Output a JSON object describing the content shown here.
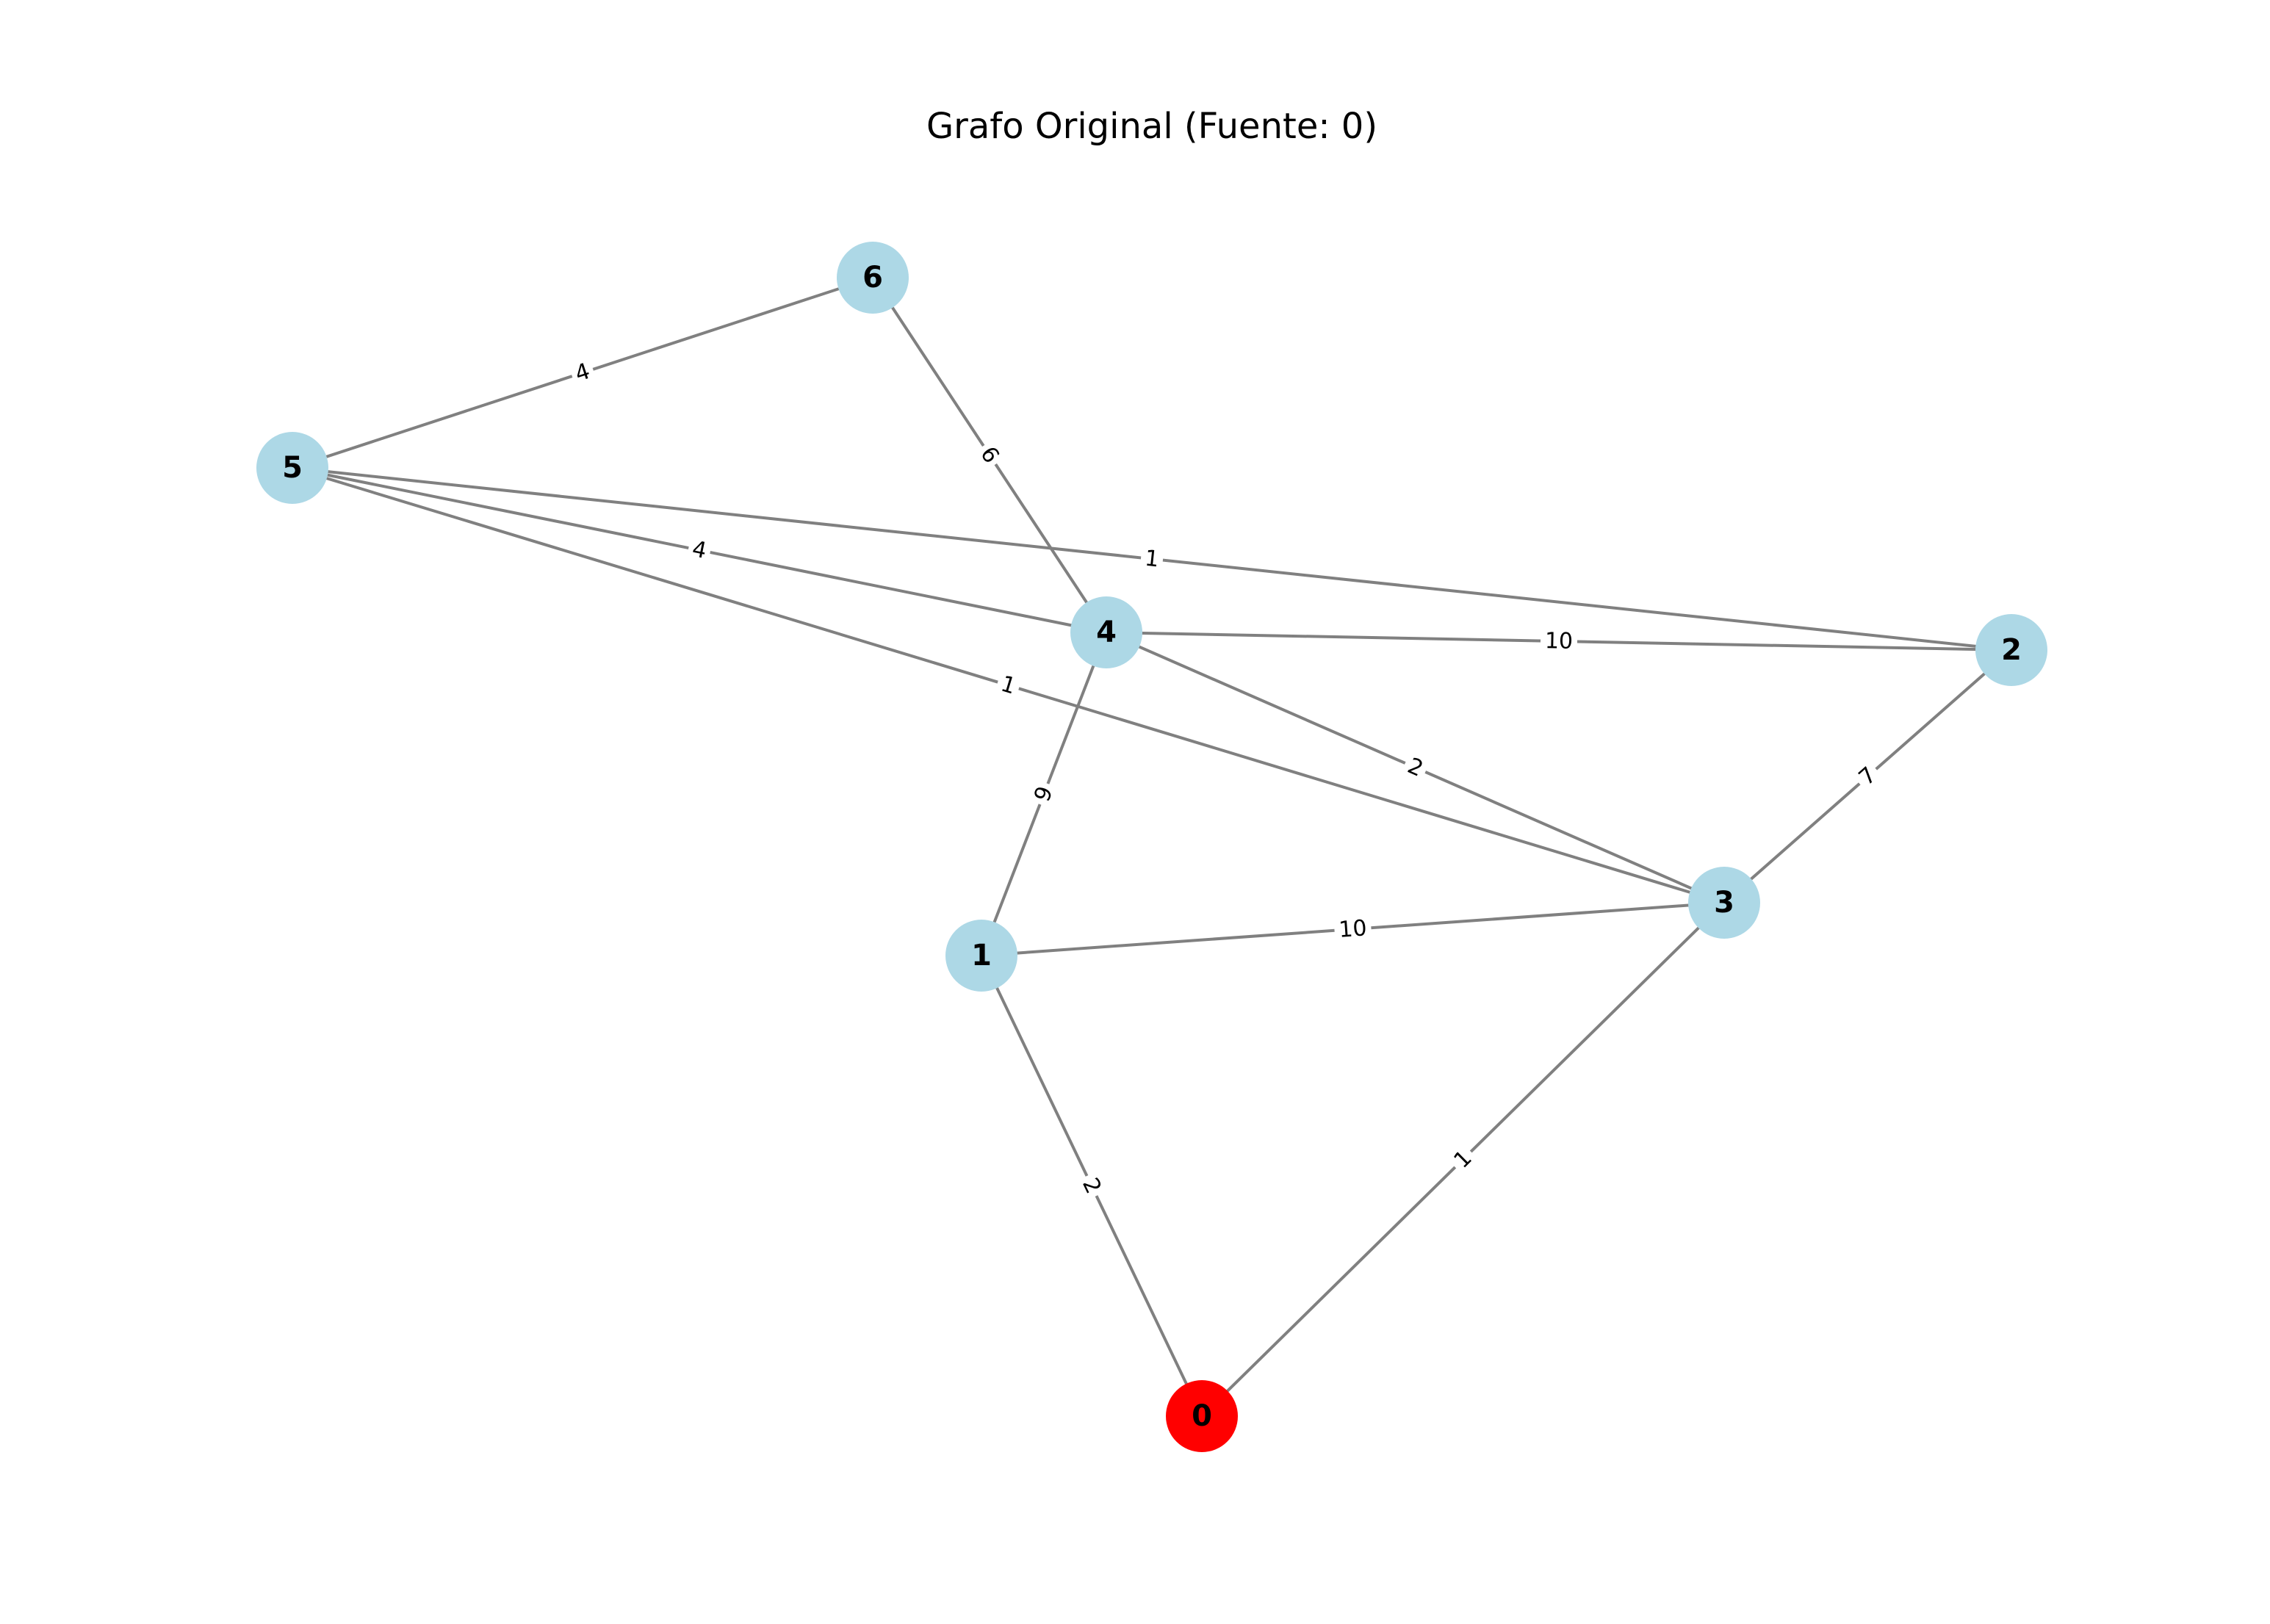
{
  "title": "Grafo Original (Fuente: 0)",
  "colors": {
    "source_node": "#ff0000",
    "node": "#add8e6",
    "edge": "#808080",
    "text": "#000000"
  },
  "nodes": [
    {
      "id": "0",
      "label": "0",
      "role": "source"
    },
    {
      "id": "1",
      "label": "1",
      "role": "node"
    },
    {
      "id": "2",
      "label": "2",
      "role": "node"
    },
    {
      "id": "3",
      "label": "3",
      "role": "node"
    },
    {
      "id": "4",
      "label": "4",
      "role": "node"
    },
    {
      "id": "5",
      "label": "5",
      "role": "node"
    },
    {
      "id": "6",
      "label": "6",
      "role": "node"
    }
  ],
  "edges": [
    {
      "from": "6",
      "to": "5",
      "weight": "4"
    },
    {
      "from": "6",
      "to": "4",
      "weight": "6"
    },
    {
      "from": "5",
      "to": "2",
      "weight": "1"
    },
    {
      "from": "5",
      "to": "4",
      "weight": "4"
    },
    {
      "from": "5",
      "to": "3",
      "weight": "1"
    },
    {
      "from": "4",
      "to": "2",
      "weight": "10"
    },
    {
      "from": "4",
      "to": "3",
      "weight": "2"
    },
    {
      "from": "4",
      "to": "1",
      "weight": "9"
    },
    {
      "from": "2",
      "to": "3",
      "weight": "7"
    },
    {
      "from": "1",
      "to": "3",
      "weight": "10"
    },
    {
      "from": "1",
      "to": "0",
      "weight": "2"
    },
    {
      "from": "3",
      "to": "0",
      "weight": "1"
    }
  ]
}
